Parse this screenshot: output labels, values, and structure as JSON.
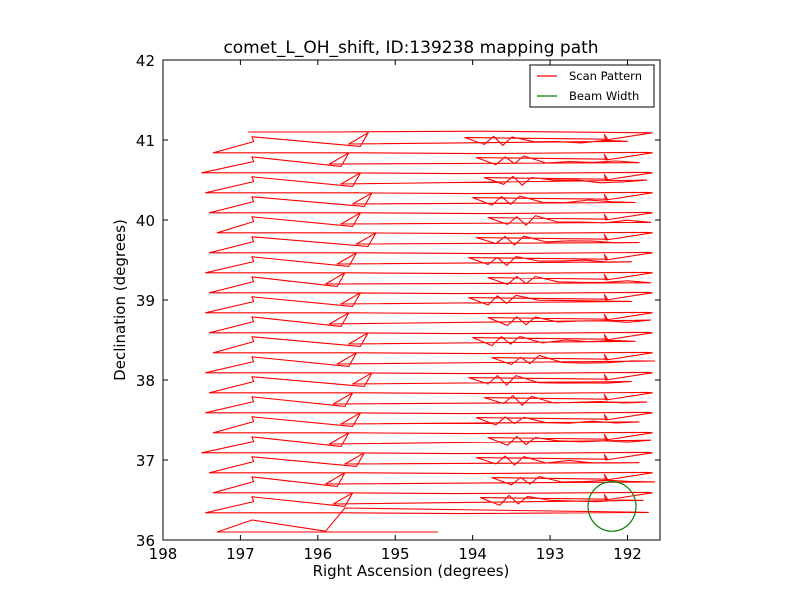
{
  "chart_data": {
    "type": "line",
    "title": "comet_L_OH_shift, ID:139238 mapping path",
    "xlabel": "Right Ascension (degrees)",
    "ylabel": "Declination (degrees)",
    "xlim": [
      198,
      191.58
    ],
    "ylim": [
      36,
      42
    ],
    "x_inverted": true,
    "xticks": [
      198,
      197,
      196,
      195,
      194,
      193,
      192
    ],
    "xtick_labels": [
      "198",
      "197",
      "196",
      "195",
      "194",
      "193",
      "192"
    ],
    "yticks": [
      36,
      37,
      38,
      39,
      40,
      41,
      42
    ],
    "ytick_labels": [
      "36",
      "37",
      "38",
      "39",
      "40",
      "41",
      "42"
    ],
    "grid": false,
    "legend": {
      "placement": "top-right",
      "entries": [
        {
          "label": "Scan Pattern",
          "color": "#ff0000"
        },
        {
          "label": "Beam Width",
          "color": "#008000"
        }
      ]
    },
    "series": [
      {
        "name": "Scan Pattern",
        "color": "#ff0000",
        "kind": "raster-scan",
        "start": {
          "ra": 196.9,
          "dec": 41.1
        },
        "first_row_dec": 40.84,
        "row_step_dec": -0.25,
        "row_count": 19,
        "end": {
          "ra": 194.45,
          "dec": 36.1
        },
        "left_vertex_ra": 196.85,
        "right_end_ra": 191.68,
        "right_hook_ra": 192.28,
        "rows": [
          {
            "dec": 40.84,
            "left_ra": 197.35,
            "mid_ra": 195.45,
            "zig_ra": 193.6
          },
          {
            "dec": 40.59,
            "left_ra": 197.5,
            "mid_ra": 195.7,
            "zig_ra": 193.45
          },
          {
            "dec": 40.34,
            "left_ra": 197.45,
            "mid_ra": 195.55,
            "zig_ra": 193.35
          },
          {
            "dec": 40.09,
            "left_ra": 197.4,
            "mid_ra": 195.4,
            "zig_ra": 193.5
          },
          {
            "dec": 39.84,
            "left_ra": 197.3,
            "mid_ra": 195.55,
            "zig_ra": 193.3
          },
          {
            "dec": 39.59,
            "left_ra": 197.4,
            "mid_ra": 195.35,
            "zig_ra": 193.45
          },
          {
            "dec": 39.34,
            "left_ra": 197.45,
            "mid_ra": 195.6,
            "zig_ra": 193.55
          },
          {
            "dec": 39.09,
            "left_ra": 197.4,
            "mid_ra": 195.75,
            "zig_ra": 193.3
          },
          {
            "dec": 38.84,
            "left_ra": 197.45,
            "mid_ra": 195.55,
            "zig_ra": 193.55
          },
          {
            "dec": 38.59,
            "left_ra": 197.4,
            "mid_ra": 195.7,
            "zig_ra": 193.3
          },
          {
            "dec": 38.34,
            "left_ra": 197.35,
            "mid_ra": 195.45,
            "zig_ra": 193.5
          },
          {
            "dec": 38.09,
            "left_ra": 197.45,
            "mid_ra": 195.6,
            "zig_ra": 193.25
          },
          {
            "dec": 37.84,
            "left_ra": 197.4,
            "mid_ra": 195.4,
            "zig_ra": 193.55
          },
          {
            "dec": 37.59,
            "left_ra": 197.45,
            "mid_ra": 195.65,
            "zig_ra": 193.35
          },
          {
            "dec": 37.34,
            "left_ra": 197.35,
            "mid_ra": 195.55,
            "zig_ra": 193.45
          },
          {
            "dec": 37.09,
            "left_ra": 197.5,
            "mid_ra": 195.7,
            "zig_ra": 193.3
          },
          {
            "dec": 36.84,
            "left_ra": 197.4,
            "mid_ra": 195.5,
            "zig_ra": 193.45
          },
          {
            "dec": 36.59,
            "left_ra": 197.35,
            "mid_ra": 195.75,
            "zig_ra": 193.25
          },
          {
            "dec": 36.34,
            "left_ra": 197.45,
            "mid_ra": 195.65,
            "zig_ra": 193.4
          }
        ]
      },
      {
        "name": "Beam Width",
        "color": "#008000",
        "kind": "circle",
        "center": {
          "ra": 192.2,
          "dec": 36.42
        },
        "radius_deg": 0.31
      }
    ]
  }
}
